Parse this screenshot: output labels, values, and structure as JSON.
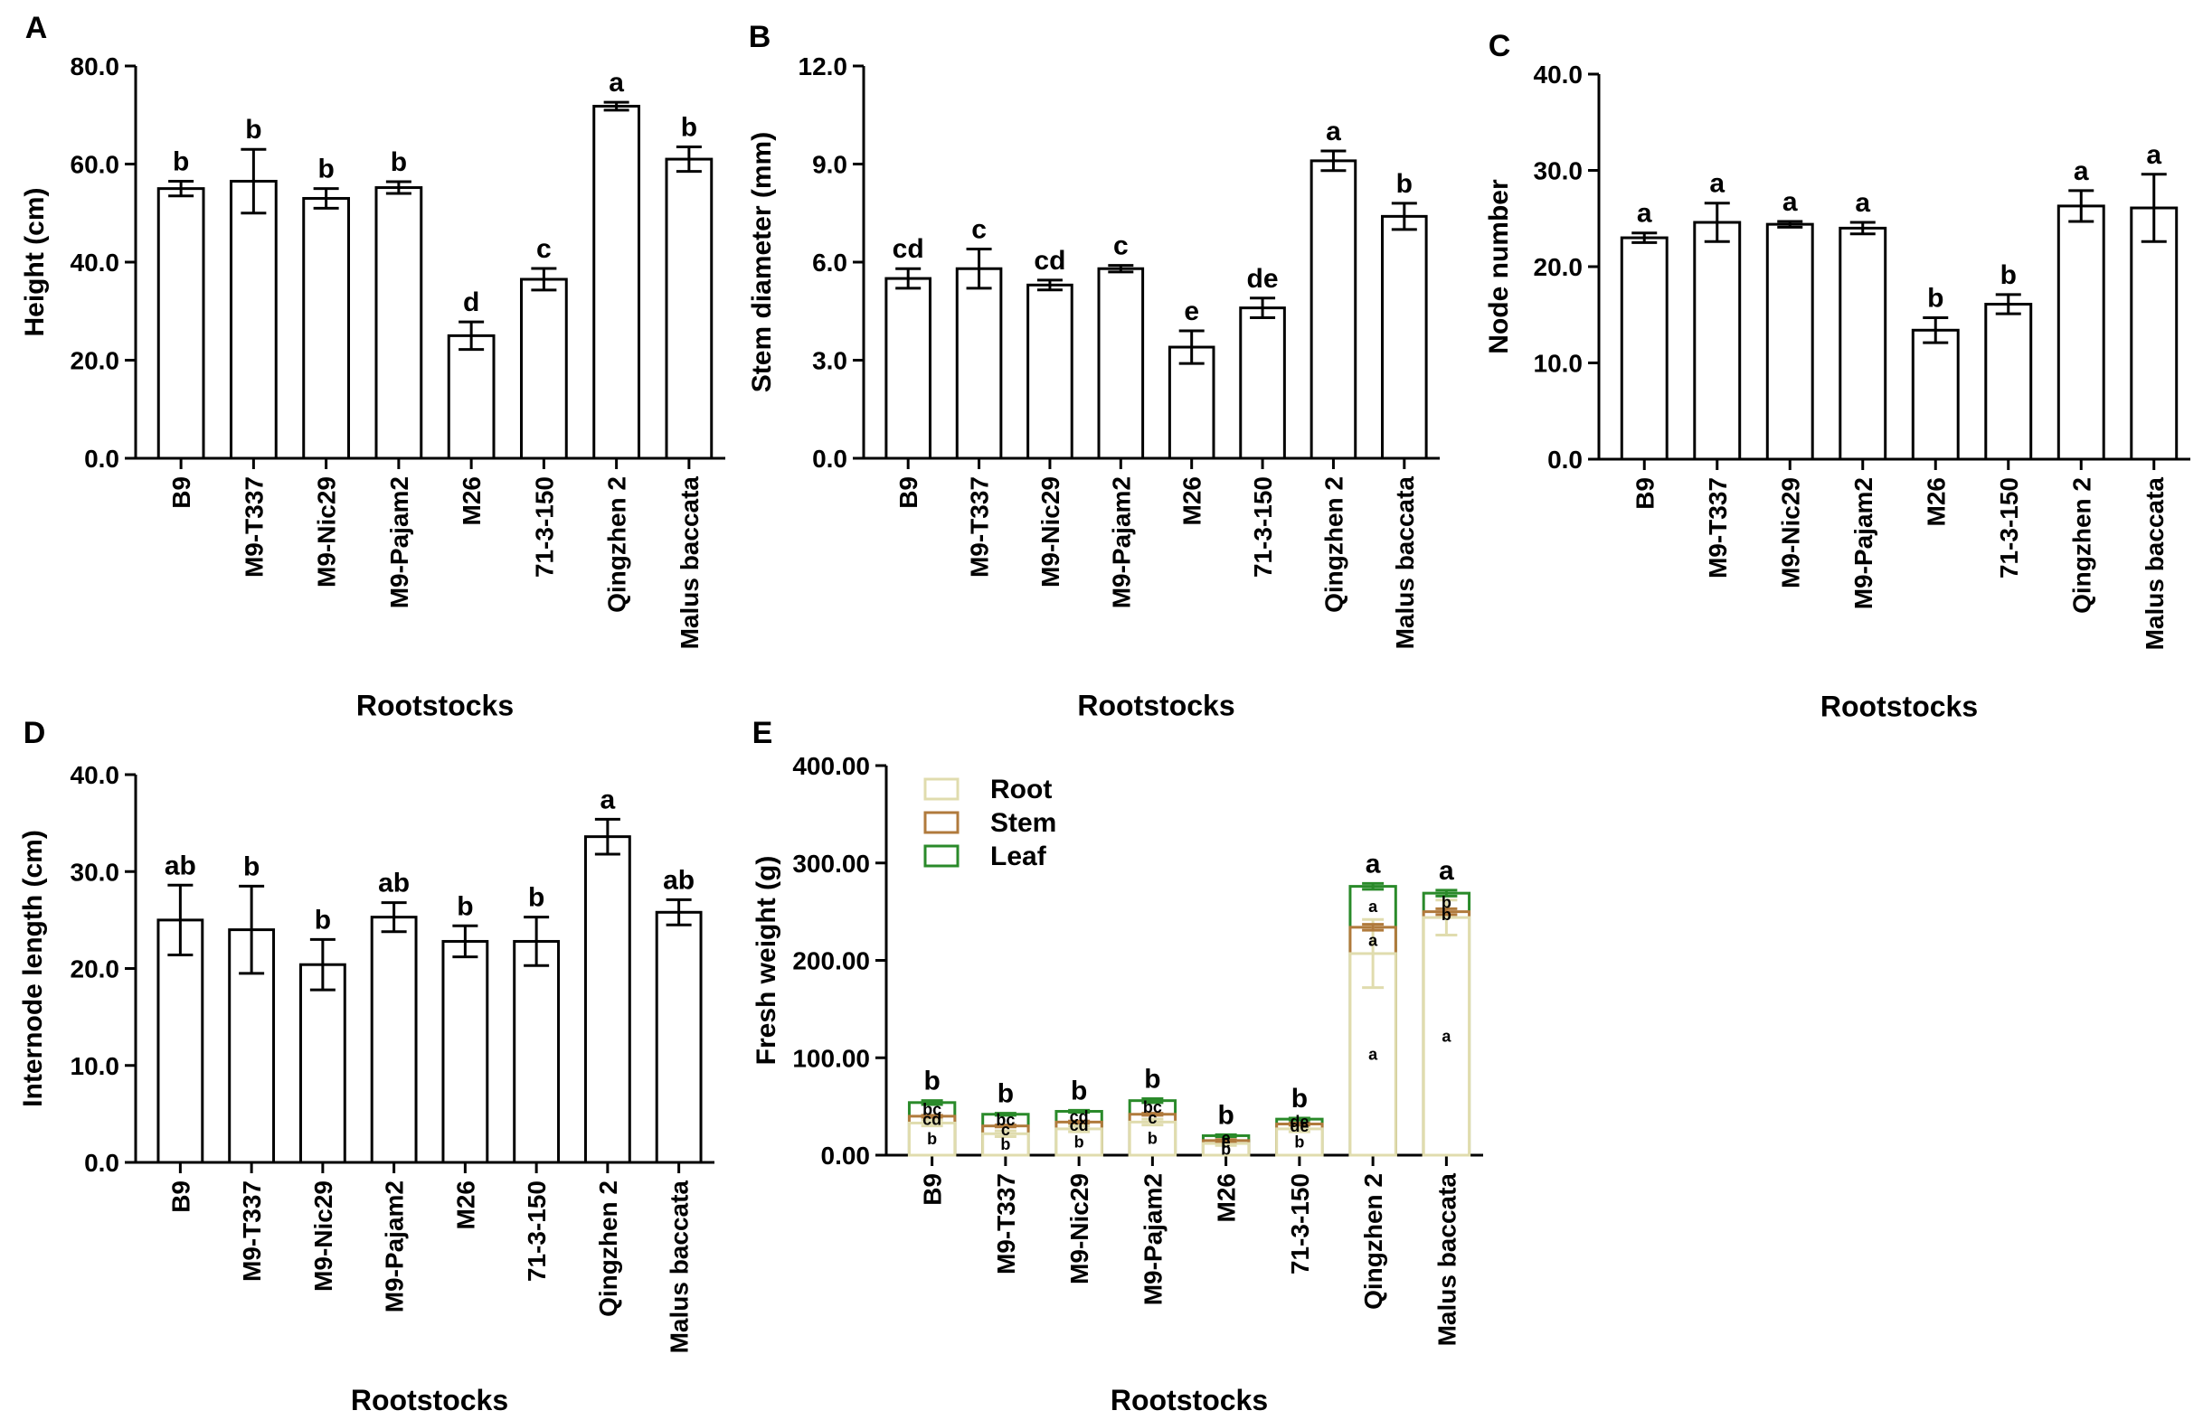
{
  "chart_data": [
    {
      "type": "bar",
      "panel": "A",
      "categories": [
        "B9",
        "M9-T337",
        "M9-Nic29",
        "M9-Pajam2",
        "M26",
        "71-3-150",
        "Qingzhen 2",
        "Malus baccata"
      ],
      "values": [
        55.0,
        56.5,
        53.0,
        55.2,
        25.0,
        36.5,
        71.8,
        61.0
      ],
      "errors": [
        1.5,
        6.5,
        2.0,
        1.2,
        2.8,
        2.2,
        0.8,
        2.5
      ],
      "letters": [
        "b",
        "b",
        "b",
        "b",
        "d",
        "c",
        "a",
        "b"
      ],
      "xlabel": "Rootstocks",
      "ylabel": "Height (cm)",
      "ylim": [
        0,
        80
      ],
      "yticks": [
        "0.0",
        "20.0",
        "40.0",
        "60.0",
        "80.0"
      ]
    },
    {
      "type": "bar",
      "panel": "B",
      "categories": [
        "B9",
        "M9-T337",
        "M9-Nic29",
        "M9-Pajam2",
        "M26",
        "71-3-150",
        "Qingzhen 2",
        "Malus baccata"
      ],
      "values": [
        5.5,
        5.8,
        5.3,
        5.8,
        3.4,
        4.6,
        9.1,
        7.4
      ],
      "errors": [
        0.3,
        0.6,
        0.15,
        0.1,
        0.5,
        0.3,
        0.3,
        0.4
      ],
      "letters": [
        "cd",
        "c",
        "cd",
        "c",
        "e",
        "de",
        "a",
        "b"
      ],
      "xlabel": "Rootstocks",
      "ylabel": "Stem diameter (mm)",
      "ylim": [
        0,
        12
      ],
      "yticks": [
        "0.0",
        "3.0",
        "6.0",
        "9.0",
        "12.0"
      ]
    },
    {
      "type": "bar",
      "panel": "C",
      "categories": [
        "B9",
        "M9-T337",
        "M9-Nic29",
        "M9-Pajam2",
        "M26",
        "71-3-150",
        "Qingzhen 2",
        "Malus baccata"
      ],
      "values": [
        23.0,
        24.6,
        24.4,
        24.0,
        13.4,
        16.1,
        26.3,
        26.1
      ],
      "errors": [
        0.5,
        2.0,
        0.3,
        0.6,
        1.3,
        1.0,
        1.6,
        3.5
      ],
      "letters": [
        "a",
        "a",
        "a",
        "a",
        "b",
        "b",
        "a",
        "a"
      ],
      "xlabel": "Rootstocks",
      "ylabel": "Node number",
      "ylim": [
        0,
        40
      ],
      "yticks": [
        "0.0",
        "10.0",
        "20.0",
        "30.0",
        "40.0"
      ]
    },
    {
      "type": "bar",
      "panel": "D",
      "categories": [
        "B9",
        "M9-T337",
        "M9-Nic29",
        "M9-Pajam2",
        "M26",
        "71-3-150",
        "Qingzhen 2",
        "Malus baccata"
      ],
      "values": [
        25.0,
        24.0,
        20.4,
        25.3,
        22.8,
        22.8,
        33.6,
        25.8
      ],
      "errors": [
        3.6,
        4.5,
        2.6,
        1.5,
        1.6,
        2.5,
        1.8,
        1.3
      ],
      "letters": [
        "ab",
        "b",
        "b",
        "ab",
        "b",
        "b",
        "a",
        "ab"
      ],
      "xlabel": "Rootstocks",
      "ylabel": "Internode length (cm)",
      "ylim": [
        0,
        40
      ],
      "yticks": [
        "0.0",
        "10.0",
        "20.0",
        "30.0",
        "40.0"
      ]
    },
    {
      "type": "stacked-bar",
      "panel": "E",
      "categories": [
        "B9",
        "M9-T337",
        "M9-Nic29",
        "M9-Pajam2",
        "M26",
        "71-3-150",
        "Qingzhen 2",
        "Malus baccata"
      ],
      "series": [
        {
          "name": "Root",
          "color": "#e0dcae",
          "values": [
            33,
            22,
            27,
            34,
            12,
            27,
            207,
            244
          ],
          "errors": [
            3,
            3,
            3,
            3,
            2,
            3,
            35,
            18
          ],
          "letters": [
            "b",
            "b",
            "b",
            "b",
            "b",
            "b",
            "a",
            "a"
          ]
        },
        {
          "name": "Stem",
          "color": "#b07a3c",
          "values": [
            7,
            8,
            7,
            8,
            3,
            5,
            27,
            6
          ],
          "errors": [
            1,
            1,
            1,
            1,
            1,
            1,
            3,
            3
          ],
          "letters": [
            "cd",
            "c",
            "cd",
            "c",
            "e",
            "de",
            "a",
            "b"
          ]
        },
        {
          "name": "Leaf",
          "color": "#2a8a2a",
          "values": [
            14,
            12,
            11,
            14,
            5,
            5,
            42,
            19
          ],
          "errors": [
            2,
            1,
            1,
            2,
            1,
            1,
            3,
            3
          ],
          "letters": [
            "bc",
            "bc",
            "cd",
            "bc",
            "e",
            "de",
            "a",
            "b"
          ]
        }
      ],
      "total_letters": [
        "b",
        "b",
        "b",
        "b",
        "b",
        "b",
        "a",
        "a"
      ],
      "xlabel": "Rootstocks",
      "ylabel": "Fresh weight (g)",
      "ylim": [
        0,
        400
      ],
      "yticks": [
        "0.00",
        "100.00",
        "200.00",
        "300.00",
        "400.00"
      ]
    }
  ]
}
